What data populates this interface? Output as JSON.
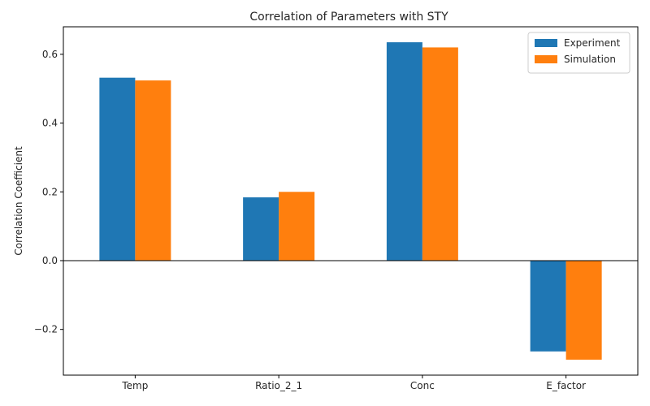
{
  "chart_data": {
    "type": "bar",
    "title": "Correlation of Parameters with STY",
    "xlabel": "",
    "ylabel": "Correlation Coefficient",
    "categories": [
      "Temp",
      "Ratio_2_1",
      "Conc",
      "E_factor"
    ],
    "series": [
      {
        "name": "Experiment",
        "color": "#1f77b4",
        "values": [
          0.532,
          0.184,
          0.635,
          -0.264
        ]
      },
      {
        "name": "Simulation",
        "color": "#ff7f0e",
        "values": [
          0.524,
          0.2,
          0.62,
          -0.288
        ]
      }
    ],
    "ylim": [
      -0.333,
      0.68
    ],
    "yticks": [
      -0.2,
      0.0,
      0.2,
      0.4,
      0.6
    ],
    "ytick_labels": [
      "−0.2",
      "0.0",
      "0.2",
      "0.4",
      "0.6"
    ],
    "grid": false,
    "legend_position": "top-right",
    "zero_line": true
  }
}
